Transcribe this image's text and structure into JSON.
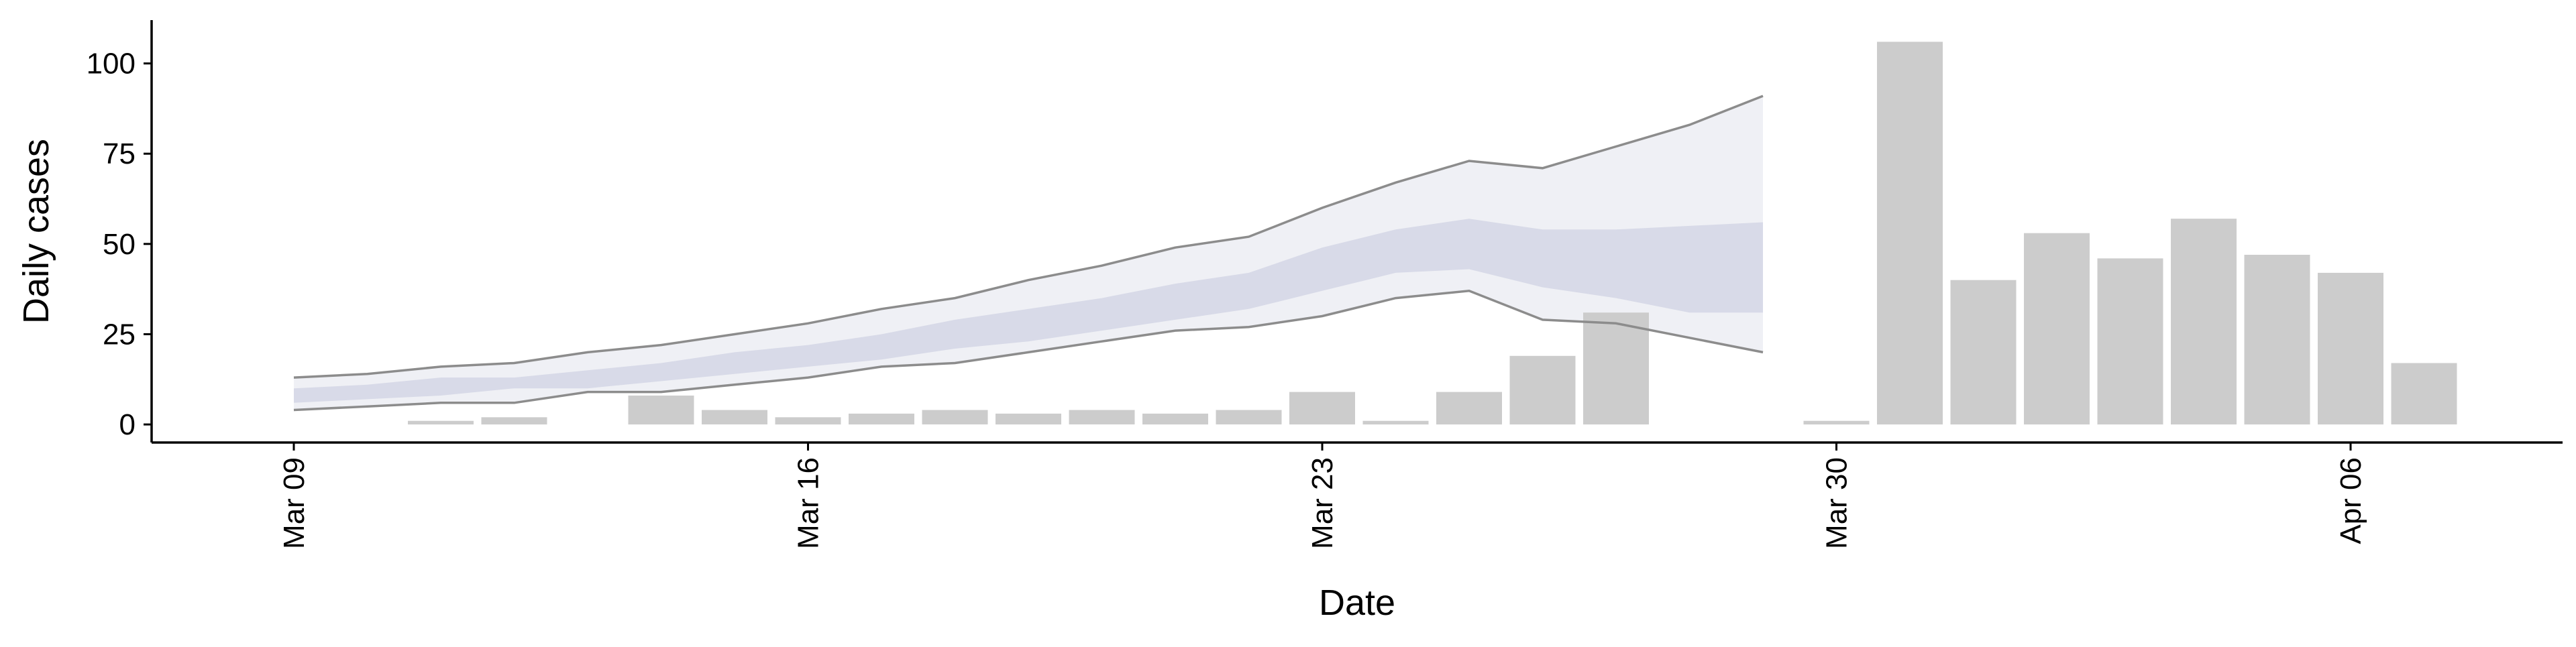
{
  "chart_data": {
    "type": "bar",
    "xlabel": "Date",
    "ylabel": "Daily cases",
    "ylim": [
      -5,
      112
    ],
    "yticks": [
      0,
      25,
      50,
      75,
      100
    ],
    "xticks": [
      "Mar 09",
      "Mar 16",
      "Mar 23",
      "Mar 30",
      "Apr 06"
    ],
    "grid": false,
    "legend": "none",
    "bar_color": "#cccccc",
    "band_color": "#c5c9dc",
    "line_color": "#8c8c8c",
    "bars": [
      {
        "date": "2020-03-10",
        "value": 0
      },
      {
        "date": "2020-03-11",
        "value": 1
      },
      {
        "date": "2020-03-12",
        "value": 2
      },
      {
        "date": "2020-03-14",
        "value": 8
      },
      {
        "date": "2020-03-15",
        "value": 4
      },
      {
        "date": "2020-03-16",
        "value": 2
      },
      {
        "date": "2020-03-17",
        "value": 3
      },
      {
        "date": "2020-03-18",
        "value": 4
      },
      {
        "date": "2020-03-19",
        "value": 3
      },
      {
        "date": "2020-03-20",
        "value": 4
      },
      {
        "date": "2020-03-21",
        "value": 3
      },
      {
        "date": "2020-03-22",
        "value": 4
      },
      {
        "date": "2020-03-23",
        "value": 9
      },
      {
        "date": "2020-03-24",
        "value": 1
      },
      {
        "date": "2020-03-25",
        "value": 9
      },
      {
        "date": "2020-03-26",
        "value": 19
      },
      {
        "date": "2020-03-27",
        "value": 31
      },
      {
        "date": "2020-03-30",
        "value": 1
      },
      {
        "date": "2020-03-31",
        "value": 106
      },
      {
        "date": "2020-04-01",
        "value": 40
      },
      {
        "date": "2020-04-02",
        "value": 53
      },
      {
        "date": "2020-04-03",
        "value": 46
      },
      {
        "date": "2020-04-04",
        "value": 57
      },
      {
        "date": "2020-04-05",
        "value": 47
      },
      {
        "date": "2020-04-06",
        "value": 42
      },
      {
        "date": "2020-04-07",
        "value": 17
      }
    ],
    "estimate": {
      "dates": [
        "2020-03-09",
        "2020-03-10",
        "2020-03-11",
        "2020-03-12",
        "2020-03-13",
        "2020-03-14",
        "2020-03-15",
        "2020-03-16",
        "2020-03-17",
        "2020-03-18",
        "2020-03-19",
        "2020-03-20",
        "2020-03-21",
        "2020-03-22",
        "2020-03-23",
        "2020-03-24",
        "2020-03-25",
        "2020-03-26",
        "2020-03-27",
        "2020-03-28",
        "2020-03-29"
      ],
      "outer_upper": [
        13,
        14,
        16,
        17,
        20,
        22,
        25,
        28,
        32,
        35,
        40,
        44,
        49,
        52,
        60,
        67,
        73,
        71,
        77,
        83,
        91
      ],
      "outer_lower": [
        4,
        5,
        6,
        6,
        9,
        9,
        11,
        13,
        16,
        17,
        20,
        23,
        26,
        27,
        30,
        35,
        37,
        29,
        28,
        24,
        20
      ],
      "inner_upper": [
        10,
        11,
        13,
        13,
        15,
        17,
        20,
        22,
        25,
        29,
        32,
        35,
        39,
        42,
        49,
        54,
        57,
        54,
        54,
        55,
        56
      ],
      "inner_lower": [
        6,
        7,
        8,
        10,
        10,
        12,
        14,
        16,
        18,
        21,
        23,
        26,
        29,
        32,
        37,
        42,
        43,
        38,
        35,
        31,
        31
      ]
    }
  }
}
